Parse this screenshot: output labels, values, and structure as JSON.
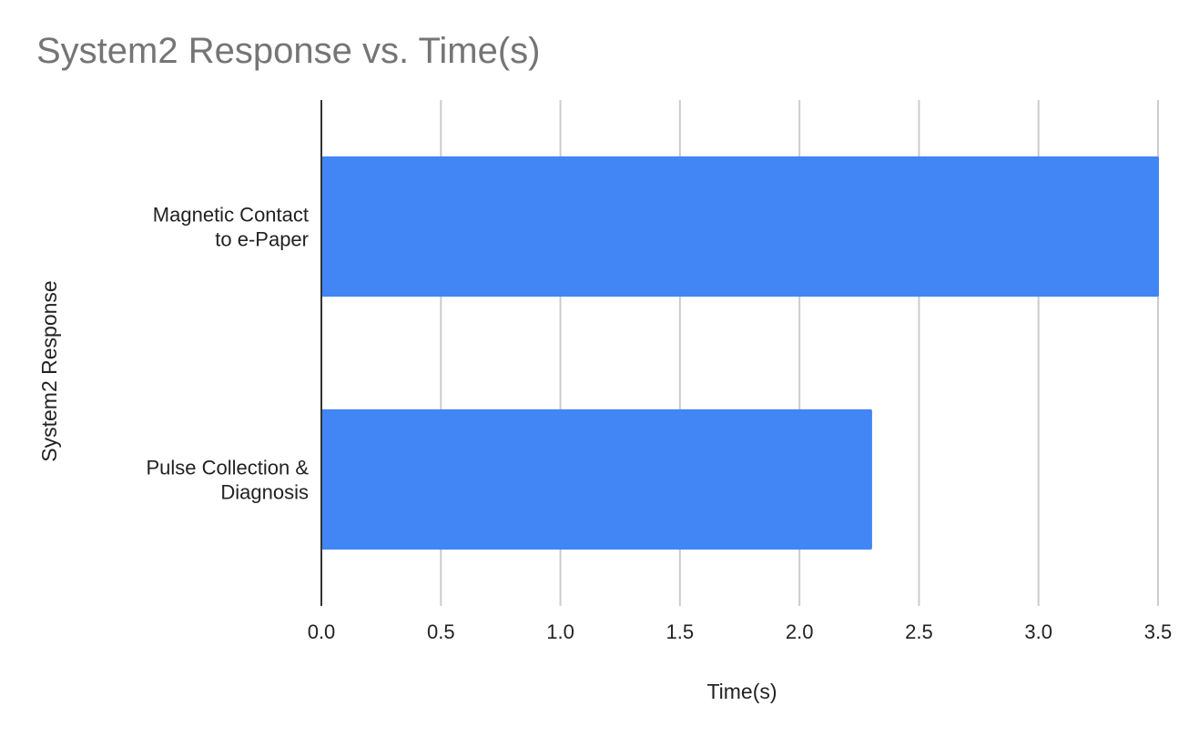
{
  "chart_data": {
    "type": "bar",
    "orientation": "horizontal",
    "title": "System2 Response vs. Time(s)",
    "xlabel": "Time(s)",
    "ylabel": "System2 Response",
    "categories": [
      [
        "Magnetic Contact",
        "to e-Paper"
      ],
      [
        "Pulse Collection &",
        "Diagnosis"
      ]
    ],
    "values": [
      3.5,
      2.3
    ],
    "xlim": [
      0,
      3.5
    ],
    "x_ticks": [
      "0.0",
      "0.5",
      "1.0",
      "1.5",
      "2.0",
      "2.5",
      "3.0",
      "3.5"
    ],
    "grid": "vertical",
    "legend": "none",
    "bar_color": "#4285f4",
    "title_color": "#757575"
  }
}
